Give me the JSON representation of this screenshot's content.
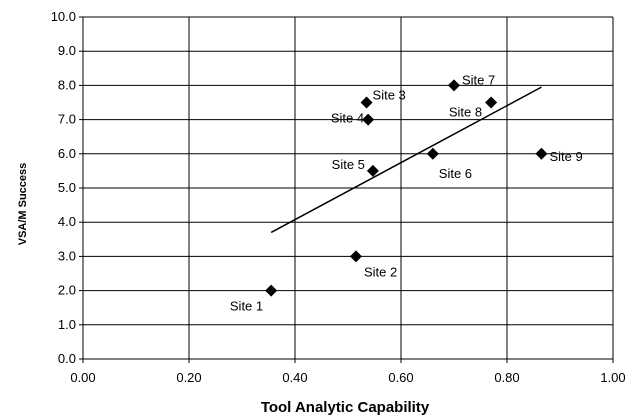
{
  "chart_data": {
    "type": "scatter",
    "xlabel": "Tool Analytic Capability",
    "ylabel": "VSA/M Success",
    "xlim": [
      0,
      1
    ],
    "ylim": [
      0,
      10
    ],
    "x_ticks": [
      "0.00",
      "0.20",
      "0.40",
      "0.60",
      "0.80",
      "1.00"
    ],
    "y_ticks": [
      "0.0",
      "1.0",
      "2.0",
      "3.0",
      "4.0",
      "5.0",
      "6.0",
      "7.0",
      "8.0",
      "9.0",
      "10.0"
    ],
    "grid": true,
    "marker": "diamond",
    "points": [
      {
        "label": "Site 1",
        "x": 0.355,
        "y": 2.0
      },
      {
        "label": "Site 2",
        "x": 0.515,
        "y": 3.0
      },
      {
        "label": "Site 3",
        "x": 0.535,
        "y": 7.5
      },
      {
        "label": "Site 4",
        "x": 0.538,
        "y": 7.0
      },
      {
        "label": "Site 5",
        "x": 0.547,
        "y": 5.5
      },
      {
        "label": "Site 6",
        "x": 0.66,
        "y": 6.0
      },
      {
        "label": "Site 7",
        "x": 0.7,
        "y": 8.0
      },
      {
        "label": "Site 8",
        "x": 0.77,
        "y": 7.5
      },
      {
        "label": "Site 9",
        "x": 0.865,
        "y": 6.0
      }
    ],
    "trendline": {
      "x": [
        0.355,
        0.865
      ],
      "y": [
        3.7,
        7.95
      ]
    }
  }
}
